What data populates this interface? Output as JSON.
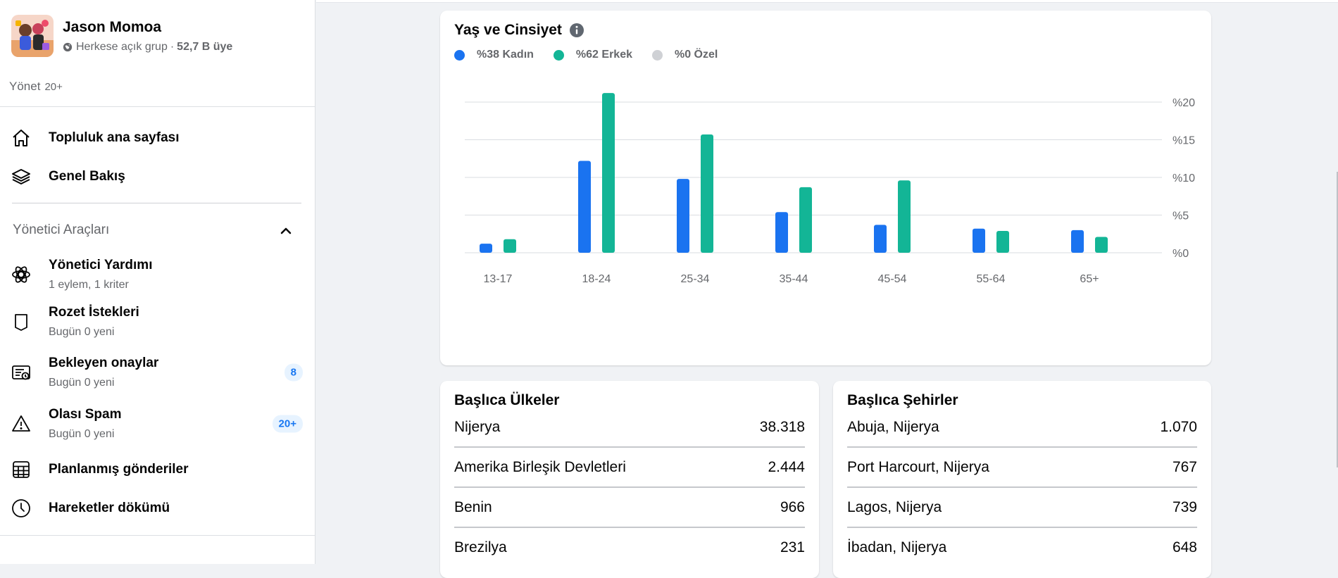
{
  "group": {
    "name": "Jason Momoa",
    "privacy": "Herkese açık grup",
    "separator": "·",
    "members": "52,7 B üye"
  },
  "manage": {
    "label": "Yönet",
    "count": "20+"
  },
  "nav": {
    "community_home": "Topluluk ana sayfası",
    "overview": "Genel Bakış"
  },
  "admin_tools": {
    "title": "Yönetici Araçları",
    "items": [
      {
        "label": "Yönetici Yardımı",
        "sub": "1 eylem, 1 kriter",
        "badge": "",
        "icon": "admin-assist-icon"
      },
      {
        "label": "Rozet İstekleri",
        "sub": "Bugün 0 yeni",
        "badge": "",
        "icon": "badge-icon"
      },
      {
        "label": "Bekleyen onaylar",
        "sub": "Bugün 0 yeni",
        "badge": "8",
        "icon": "pending-approvals-icon"
      },
      {
        "label": "Olası Spam",
        "sub": "Bugün 0 yeni",
        "badge": "20+",
        "icon": "warning-icon"
      },
      {
        "label": "Planlanmış gönderiler",
        "sub": "",
        "badge": "",
        "icon": "calendar-grid-icon"
      },
      {
        "label": "Hareketler dökümü",
        "sub": "",
        "badge": "",
        "icon": "clock-icon"
      }
    ]
  },
  "colors": {
    "female": "#1a73f0",
    "male": "#13b596",
    "other": "#cfd1d5"
  },
  "chart_data": {
    "type": "bar",
    "title": "Yaş ve Cinsiyet",
    "categories": [
      "13-17",
      "18-24",
      "25-34",
      "35-44",
      "45-54",
      "55-64",
      "65+"
    ],
    "series": [
      {
        "name": "%38 Kadın",
        "values": [
          1.2,
          12.2,
          9.8,
          5.4,
          3.7,
          3.2,
          3.0
        ]
      },
      {
        "name": "%62 Erkek",
        "values": [
          1.8,
          21.2,
          15.7,
          8.7,
          9.6,
          2.9,
          2.1
        ]
      },
      {
        "name": "%0 Özel",
        "values": [
          0,
          0,
          0,
          0,
          0,
          0,
          0
        ]
      }
    ],
    "yticks": [
      "%20",
      "%15",
      "%10",
      "%5",
      "%0"
    ],
    "ytick_values": [
      20,
      15,
      10,
      5,
      0
    ],
    "ylim": [
      0,
      20
    ],
    "grid": true,
    "legend_position": "top-left",
    "y_axis_side": "right"
  },
  "countries": {
    "title": "Başlıca Ülkeler",
    "rows": [
      {
        "name": "Nijerya",
        "value": "38.318"
      },
      {
        "name": "Amerika Birleşik Devletleri",
        "value": "2.444"
      },
      {
        "name": "Benin",
        "value": "966"
      },
      {
        "name": "Brezilya",
        "value": "231"
      }
    ]
  },
  "cities": {
    "title": "Başlıca Şehirler",
    "rows": [
      {
        "name": "Abuja, Nijerya",
        "value": "1.070"
      },
      {
        "name": "Port Harcourt, Nijerya",
        "value": "767"
      },
      {
        "name": "Lagos, Nijerya",
        "value": "739"
      },
      {
        "name": "İbadan, Nijerya",
        "value": "648"
      }
    ]
  }
}
